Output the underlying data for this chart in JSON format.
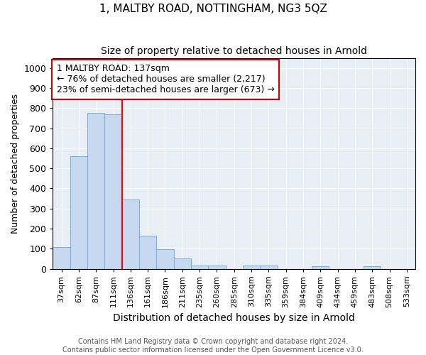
{
  "title": "1, MALTBY ROAD, NOTTINGHAM, NG3 5QZ",
  "subtitle": "Size of property relative to detached houses in Arnold",
  "xlabel": "Distribution of detached houses by size in Arnold",
  "ylabel": "Number of detached properties",
  "categories": [
    "37sqm",
    "62sqm",
    "87sqm",
    "111sqm",
    "136sqm",
    "161sqm",
    "186sqm",
    "211sqm",
    "235sqm",
    "260sqm",
    "285sqm",
    "310sqm",
    "335sqm",
    "359sqm",
    "384sqm",
    "409sqm",
    "434sqm",
    "459sqm",
    "483sqm",
    "508sqm",
    "533sqm"
  ],
  "values": [
    110,
    560,
    775,
    770,
    345,
    165,
    97,
    53,
    15,
    15,
    0,
    15,
    15,
    0,
    0,
    12,
    0,
    0,
    12,
    0,
    0
  ],
  "bar_color": "#c5d8f0",
  "bar_edgecolor": "#7aadd4",
  "red_line_x": 3.5,
  "annotation_text": "1 MALTBY ROAD: 137sqm\n← 76% of detached houses are smaller (2,217)\n23% of semi-detached houses are larger (673) →",
  "annotation_box_facecolor": "#ffffff",
  "annotation_box_edgecolor": "#cc0000",
  "ylim": [
    0,
    1050
  ],
  "yticks": [
    0,
    100,
    200,
    300,
    400,
    500,
    600,
    700,
    800,
    900,
    1000
  ],
  "bg_color": "#e8eef5",
  "footer1": "Contains HM Land Registry data © Crown copyright and database right 2024.",
  "footer2": "Contains public sector information licensed under the Open Government Licence v3.0.",
  "title_fontsize": 11,
  "subtitle_fontsize": 10,
  "xlabel_fontsize": 10,
  "ylabel_fontsize": 9,
  "tick_fontsize": 8,
  "footer_fontsize": 7,
  "annotation_fontsize": 9
}
